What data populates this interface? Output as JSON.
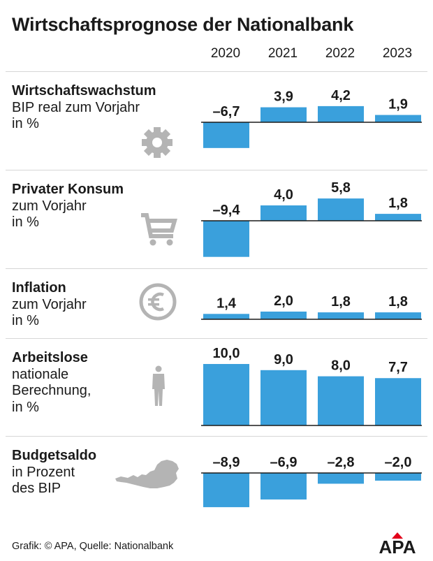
{
  "header": {
    "title": "Wirtschaftsprognose der Nationalbank",
    "years": [
      "2020",
      "2021",
      "2022",
      "2023"
    ]
  },
  "footer": {
    "credit": "Grafik: © APA, Quelle: Nationalbank"
  },
  "logo": {
    "text": "APA"
  },
  "colors": {
    "bar": "#3aa0dc",
    "text": "#1a1a1a",
    "icon": "#b4b4b4",
    "divider": "#d6d6d6"
  },
  "chart_data": [
    {
      "type": "bar",
      "icon": "gear-icon",
      "title": "Wirtschaftswachstum",
      "subtitle": "BIP real zum Vorjahr\nin %",
      "categories": [
        "2020",
        "2021",
        "2022",
        "2023"
      ],
      "values": [
        -6.7,
        3.9,
        4.2,
        1.9
      ],
      "labels": [
        "–6,7",
        "3,9",
        "4,2",
        "1,9"
      ]
    },
    {
      "type": "bar",
      "icon": "shopping-cart-icon",
      "title": "Privater Konsum",
      "subtitle": "zum Vorjahr\nin %",
      "categories": [
        "2020",
        "2021",
        "2022",
        "2023"
      ],
      "values": [
        -9.4,
        4.0,
        5.8,
        1.8
      ],
      "labels": [
        "–9,4",
        "4,0",
        "5,8",
        "1,8"
      ]
    },
    {
      "type": "bar",
      "icon": "euro-icon",
      "title": "Inflation",
      "subtitle": "zum Vorjahr\nin %",
      "categories": [
        "2020",
        "2021",
        "2022",
        "2023"
      ],
      "values": [
        1.4,
        2.0,
        1.8,
        1.8
      ],
      "labels": [
        "1,4",
        "2,0",
        "1,8",
        "1,8"
      ]
    },
    {
      "type": "bar",
      "icon": "person-icon",
      "title": "Arbeitslose",
      "subtitle": "nationale\nBerechnung,\nin %",
      "categories": [
        "2020",
        "2021",
        "2022",
        "2023"
      ],
      "values": [
        10.0,
        9.0,
        8.0,
        7.7
      ],
      "labels": [
        "10,0",
        "9,0",
        "8,0",
        "7,7"
      ]
    },
    {
      "type": "bar",
      "icon": "austria-map-icon",
      "title": "Budgetsaldo",
      "subtitle": "in Prozent\ndes BIP",
      "categories": [
        "2020",
        "2021",
        "2022",
        "2023"
      ],
      "values": [
        -8.9,
        -6.9,
        -2.8,
        -2.0
      ],
      "labels": [
        "–8,9",
        "–6,9",
        "–2,8",
        "–2,0"
      ]
    }
  ]
}
